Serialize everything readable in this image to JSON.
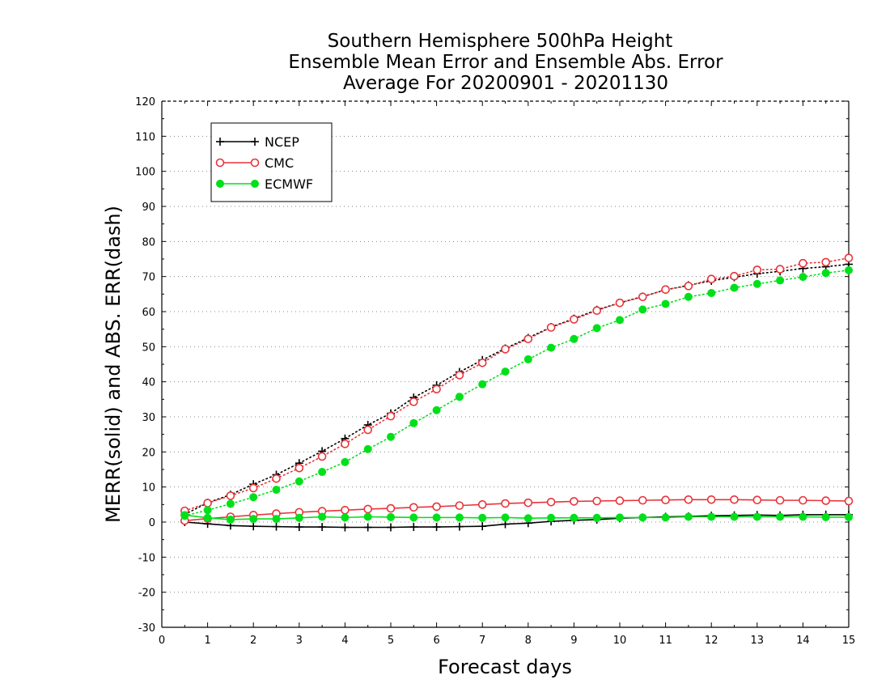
{
  "chart_data": {
    "type": "line",
    "title_lines": [
      "Southern Hemisphere 500hPa Height",
      "Ensemble Mean Error and Ensemble Abs. Error",
      "Average For 20200901 - 20201130"
    ],
    "xlabel": "Forecast days",
    "ylabel": "MERR(solid) and ABS. ERR(dash)",
    "xlim": [
      0,
      15
    ],
    "ylim": [
      -30,
      120
    ],
    "x_ticks": [
      "0",
      "1",
      "2",
      "3",
      "4",
      "5",
      "6",
      "7",
      "8",
      "9",
      "10",
      "11",
      "12",
      "13",
      "14",
      "15"
    ],
    "y_ticks": [
      "-30",
      "-20",
      "-10",
      "0",
      "10",
      "20",
      "30",
      "40",
      "50",
      "60",
      "70",
      "80",
      "90",
      "100",
      "110",
      "120"
    ],
    "grid": "horizontal dotted",
    "legend_position": "top-left",
    "x": [
      0.5,
      1,
      1.5,
      2,
      2.5,
      3,
      3.5,
      4,
      4.5,
      5,
      5.5,
      6,
      6.5,
      7,
      7.5,
      8,
      8.5,
      9,
      9.5,
      10,
      10.5,
      11,
      11.5,
      12,
      12.5,
      13,
      13.5,
      14,
      14.5,
      15
    ],
    "series": [
      {
        "name": "NCEP",
        "color": "#000000",
        "marker": "plus",
        "merr": [
          0,
          -0.5,
          -1,
          -1.2,
          -1.3,
          -1.4,
          -1.4,
          -1.5,
          -1.5,
          -1.5,
          -1.4,
          -1.4,
          -1.3,
          -1.2,
          -0.6,
          -0.3,
          0.2,
          0.5,
          0.7,
          1.1,
          1.3,
          1.5,
          1.6,
          1.8,
          1.9,
          2,
          1.9,
          2.1,
          2.1,
          2.1
        ],
        "abs_err": [
          2.2,
          5.5,
          7.8,
          10.8,
          13.5,
          16.8,
          20.2,
          23.8,
          27.7,
          31,
          35.5,
          39,
          42.8,
          46.2,
          49.5,
          52.5,
          55.6,
          58,
          60.5,
          62.5,
          64.3,
          66.2,
          67.5,
          68.8,
          69.8,
          70.8,
          71.5,
          72.3,
          72.8,
          73.5
        ]
      },
      {
        "name": "CMC",
        "color": "#e8343a",
        "marker": "open-circle",
        "merr": [
          0.4,
          1,
          1.5,
          2,
          2.4,
          2.8,
          3.1,
          3.4,
          3.7,
          3.9,
          4.2,
          4.4,
          4.7,
          5,
          5.3,
          5.5,
          5.7,
          5.9,
          6,
          6.1,
          6.2,
          6.3,
          6.4,
          6.4,
          6.4,
          6.3,
          6.2,
          6.2,
          6.1,
          6
        ],
        "abs_err": [
          3.2,
          5.4,
          7.5,
          9.7,
          12.4,
          15.4,
          18.7,
          22.3,
          26.3,
          30.2,
          34.3,
          37.9,
          41.9,
          45.4,
          49.3,
          52.2,
          55.5,
          57.8,
          60.3,
          62.5,
          64.2,
          66.3,
          67.3,
          69.3,
          70.1,
          71.9,
          72.1,
          73.8,
          74.1,
          75.3
        ]
      },
      {
        "name": "ECMWF",
        "color": "#00e01a",
        "marker": "filled-circle",
        "merr": [
          2,
          1.2,
          0.7,
          0.9,
          0.9,
          1.2,
          1.5,
          1.3,
          1.5,
          1.4,
          1.3,
          1.3,
          1.3,
          1.2,
          1.3,
          1.1,
          1.2,
          1.2,
          1.2,
          1.3,
          1.3,
          1.3,
          1.5,
          1.5,
          1.5,
          1.5,
          1.5,
          1.5,
          1.4,
          1.4
        ],
        "abs_err": [
          1.8,
          3.4,
          5.2,
          7.1,
          9.2,
          11.6,
          14.3,
          17.1,
          20.8,
          24.3,
          28.2,
          31.9,
          35.7,
          39.3,
          42.9,
          46.4,
          49.7,
          52.2,
          55.3,
          57.6,
          60.6,
          62.2,
          64.2,
          65.3,
          66.8,
          67.9,
          68.9,
          69.9,
          71,
          71.8
        ]
      }
    ]
  }
}
